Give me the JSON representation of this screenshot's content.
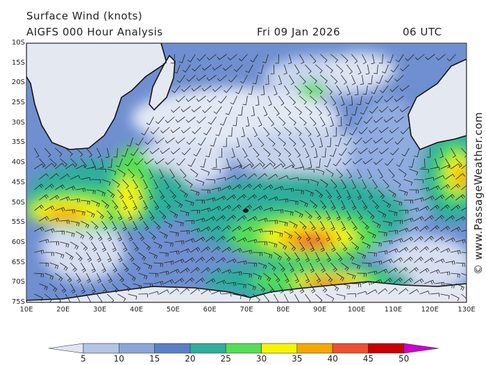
{
  "header": {
    "title": "Surface Wind (knots)",
    "subtitle": "AIGFS 000 Hour Analysis",
    "date": "Fri 09 Jan 2026",
    "time": "06 UTC"
  },
  "credit": "© www.PassageWeather.com",
  "map": {
    "lat_labels": [
      "10S",
      "15S",
      "20S",
      "25S",
      "30S",
      "35S",
      "40S",
      "45S",
      "50S",
      "55S",
      "60S",
      "65S",
      "70S",
      "75S"
    ],
    "lon_labels": [
      "10E",
      "20E",
      "30E",
      "40E",
      "50E",
      "60E",
      "70E",
      "80E",
      "90E",
      "100E",
      "110E",
      "120E",
      "130E"
    ],
    "lat_range": [
      -10,
      -75
    ],
    "lon_range": [
      10,
      130
    ]
  },
  "colorbar": {
    "labels": [
      "5",
      "10",
      "15",
      "20",
      "25",
      "30",
      "35",
      "40",
      "45",
      "50"
    ],
    "colors": [
      "#dfe5f2",
      "#b3c5e5",
      "#8aa6da",
      "#5b7fc7",
      "#2fae9c",
      "#55dd55",
      "#f5f500",
      "#f5a800",
      "#ee5030",
      "#c80000",
      "#cc00cc"
    ]
  }
}
